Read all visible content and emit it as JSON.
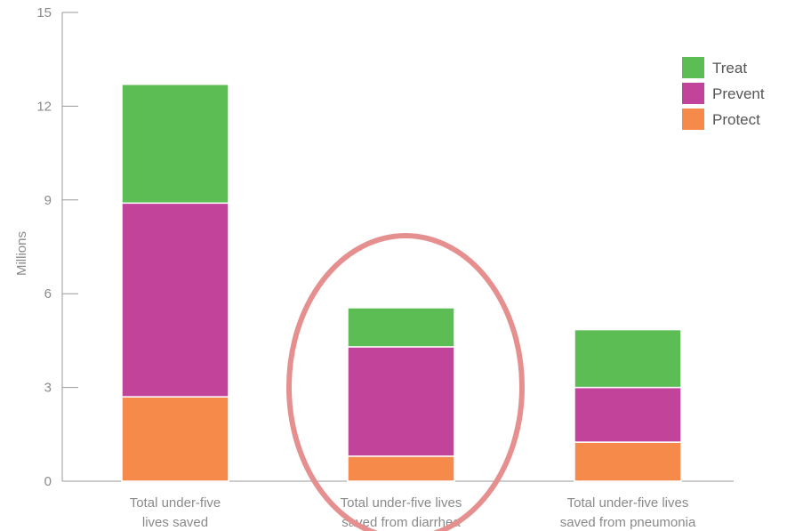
{
  "chart_data": {
    "type": "bar",
    "stacked": true,
    "categories": [
      [
        "Total under-five",
        "lives saved"
      ],
      [
        "Total under-five lives",
        "saved from diarrhea"
      ],
      [
        "Total under-five lives",
        "saved from pneumonia"
      ]
    ],
    "series": [
      {
        "name": "Protect",
        "color": "#f58a4b",
        "values": [
          2.7,
          0.8,
          1.25
        ]
      },
      {
        "name": "Prevent",
        "color": "#c2449a",
        "values": [
          6.2,
          3.5,
          1.75
        ]
      },
      {
        "name": "Treat",
        "color": "#5cbd55",
        "values": [
          3.8,
          1.25,
          1.85
        ]
      }
    ],
    "legend_order": [
      "Treat",
      "Prevent",
      "Protect"
    ],
    "ylabel": "Millions",
    "xlabel": "",
    "ylim": [
      0,
      15
    ],
    "yticks": [
      0,
      3,
      6,
      9,
      12,
      15
    ],
    "grid": false,
    "legend_position": "top-right",
    "highlight": {
      "category_index": 1,
      "shape": "ellipse",
      "color": "#e58f8f"
    }
  }
}
